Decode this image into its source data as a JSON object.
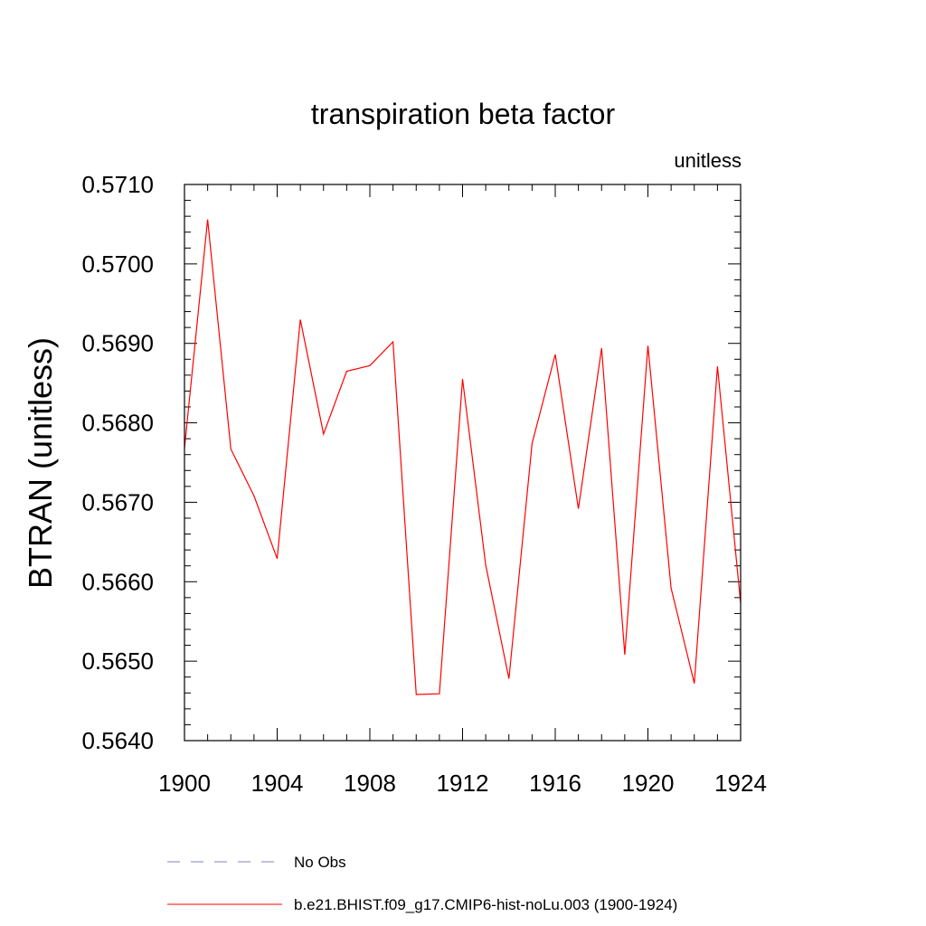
{
  "chart_data": {
    "type": "line",
    "title": "transpiration beta factor",
    "units_label": "unitless",
    "ylabel": "BTRAN  (unitless)",
    "xlabel": "",
    "xlim": [
      1900,
      1924
    ],
    "ylim": [
      0.564,
      0.571
    ],
    "x_ticks": [
      "1900",
      "1904",
      "1908",
      "1912",
      "1916",
      "1920",
      "1924"
    ],
    "y_ticks": [
      "0.5640",
      "0.5650",
      "0.5660",
      "0.5670",
      "0.5680",
      "0.5690",
      "0.5700",
      "0.5710"
    ],
    "grid": false,
    "legend_position": "bottom",
    "series": [
      {
        "name": "b.e21.BHIST.f09_g17.CMIP6-hist-noLu.003 (1900-1924)",
        "color": "#ff0000",
        "style": "solid",
        "x": [
          1900,
          1901,
          1902,
          1903,
          1904,
          1905,
          1906,
          1907,
          1908,
          1909,
          1910,
          1911,
          1912,
          1913,
          1914,
          1915,
          1916,
          1917,
          1918,
          1919,
          1920,
          1921,
          1922,
          1923,
          1924
        ],
        "values": [
          0.56768,
          0.57056,
          0.56767,
          0.56708,
          0.56629,
          0.5693,
          0.56786,
          0.56865,
          0.56872,
          0.56902,
          0.56458,
          0.56459,
          0.56855,
          0.56621,
          0.56478,
          0.56774,
          0.56886,
          0.56692,
          0.56894,
          0.56508,
          0.56897,
          0.56592,
          0.56472,
          0.56871,
          0.56573
        ]
      }
    ],
    "legend": [
      {
        "label": "No Obs",
        "color": "#8080c0",
        "style": "dashed"
      },
      {
        "label": "b.e21.BHIST.f09_g17.CMIP6-hist-noLu.003 (1900-1924)",
        "color": "#ff0000",
        "style": "solid"
      }
    ]
  }
}
